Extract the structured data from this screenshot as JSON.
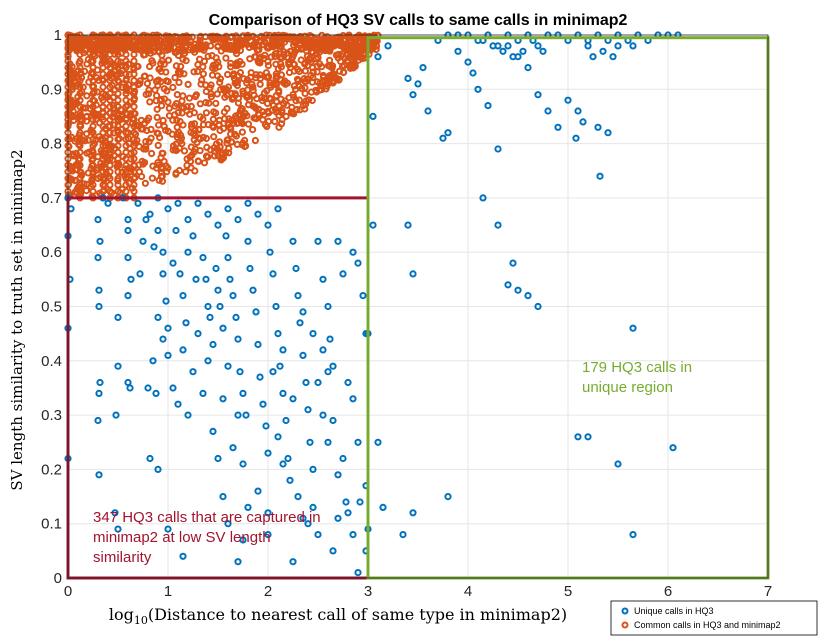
{
  "chart_data": {
    "type": "scatter",
    "title": "Comparison of HQ3 SV calls to same calls in minimap2",
    "xlabel": "log10(Distance to nearest call of same type in minimap2)",
    "xlabel_base": "log",
    "xlabel_sub": "10",
    "xlabel_rest": "(Distance to nearest call of same type in minimap2)",
    "ylabel": "SV length similarity to truth set in minimap2",
    "xlim": [
      0,
      7
    ],
    "ylim": [
      0,
      1
    ],
    "xticks": [
      "0",
      "1",
      "2",
      "3",
      "4",
      "5",
      "6",
      "7"
    ],
    "yticks": [
      "0",
      "0.1",
      "0.2",
      "0.3",
      "0.4",
      "0.5",
      "0.6",
      "0.7",
      "0.8",
      "0.9",
      "1"
    ],
    "grid": true,
    "legend_position": "bottom-right",
    "series": [
      {
        "name": "Unique calls in HQ3",
        "color": "#0072BD",
        "points": [
          [
            0.0,
            0.46
          ],
          [
            0.0,
            0.22
          ],
          [
            0.02,
            0.55
          ],
          [
            0.0,
            0.63
          ],
          [
            0.03,
            0.68
          ],
          [
            0.0,
            0.7
          ],
          [
            0.3,
            0.66
          ],
          [
            0.32,
            0.62
          ],
          [
            0.3,
            0.59
          ],
          [
            0.31,
            0.5
          ],
          [
            0.32,
            0.36
          ],
          [
            0.31,
            0.34
          ],
          [
            0.3,
            0.29
          ],
          [
            0.31,
            0.19
          ],
          [
            0.31,
            0.53
          ],
          [
            0.5,
            0.48
          ],
          [
            0.5,
            0.39
          ],
          [
            0.48,
            0.3
          ],
          [
            0.47,
            0.12
          ],
          [
            0.5,
            0.09
          ],
          [
            0.6,
            0.36
          ],
          [
            0.62,
            0.35
          ],
          [
            0.6,
            0.66
          ],
          [
            0.6,
            0.59
          ],
          [
            0.63,
            0.55
          ],
          [
            0.6,
            0.52
          ],
          [
            0.8,
            0.35
          ],
          [
            0.82,
            0.22
          ],
          [
            0.88,
            0.34
          ],
          [
            0.9,
            0.2
          ],
          [
            0.95,
            0.6
          ],
          [
            1.0,
            0.41
          ],
          [
            1.0,
            0.09
          ],
          [
            1.05,
            0.35
          ],
          [
            1.1,
            0.32
          ],
          [
            1.15,
            0.04
          ],
          [
            0.72,
            0.56
          ],
          [
            0.75,
            0.62
          ],
          [
            0.78,
            0.66
          ],
          [
            0.82,
            0.67
          ],
          [
            0.86,
            0.61
          ],
          [
            0.9,
            0.64
          ],
          [
            0.95,
            0.56
          ],
          [
            0.98,
            0.51
          ],
          [
            1.05,
            0.58
          ],
          [
            1.08,
            0.64
          ],
          [
            1.12,
            0.56
          ],
          [
            1.15,
            0.52
          ],
          [
            1.18,
            0.47
          ],
          [
            1.2,
            0.6
          ],
          [
            1.25,
            0.63
          ],
          [
            1.28,
            0.55
          ],
          [
            1.3,
            0.45
          ],
          [
            1.35,
            0.59
          ],
          [
            1.38,
            0.55
          ],
          [
            1.4,
            0.5
          ],
          [
            1.42,
            0.48
          ],
          [
            1.45,
            0.43
          ],
          [
            1.48,
            0.57
          ],
          [
            1.5,
            0.53
          ],
          [
            1.52,
            0.5
          ],
          [
            1.55,
            0.46
          ],
          [
            1.58,
            0.63
          ],
          [
            1.6,
            0.59
          ],
          [
            1.62,
            0.55
          ],
          [
            1.65,
            0.52
          ],
          [
            1.68,
            0.48
          ],
          [
            1.7,
            0.44
          ],
          [
            1.72,
            0.38
          ],
          [
            1.75,
            0.34
          ],
          [
            1.78,
            0.3
          ],
          [
            1.8,
            0.62
          ],
          [
            1.82,
            0.57
          ],
          [
            1.85,
            0.53
          ],
          [
            1.88,
            0.49
          ],
          [
            1.9,
            0.43
          ],
          [
            1.92,
            0.37
          ],
          [
            1.95,
            0.32
          ],
          [
            1.98,
            0.28
          ],
          [
            2.0,
            0.23
          ],
          [
            2.02,
            0.6
          ],
          [
            2.05,
            0.56
          ],
          [
            2.08,
            0.5
          ],
          [
            2.1,
            0.45
          ],
          [
            2.12,
            0.39
          ],
          [
            2.15,
            0.34
          ],
          [
            2.18,
            0.29
          ],
          [
            2.2,
            0.22
          ],
          [
            2.22,
            0.18
          ],
          [
            2.25,
            0.62
          ],
          [
            2.28,
            0.57
          ],
          [
            2.3,
            0.52
          ],
          [
            2.32,
            0.47
          ],
          [
            2.35,
            0.41
          ],
          [
            2.38,
            0.36
          ],
          [
            2.4,
            0.31
          ],
          [
            2.42,
            0.25
          ],
          [
            2.45,
            0.2
          ],
          [
            1.3,
            0.69
          ],
          [
            1.4,
            0.67
          ],
          [
            1.5,
            0.65
          ],
          [
            1.6,
            0.68
          ],
          [
            1.7,
            0.66
          ],
          [
            1.8,
            0.69
          ],
          [
            1.9,
            0.67
          ],
          [
            2.0,
            0.65
          ],
          [
            2.1,
            0.68
          ],
          [
            1.45,
            0.27
          ],
          [
            1.5,
            0.22
          ],
          [
            1.55,
            0.33
          ],
          [
            1.6,
            0.39
          ],
          [
            1.65,
            0.24
          ],
          [
            1.7,
            0.3
          ],
          [
            1.75,
            0.21
          ],
          [
            1.55,
            0.15
          ],
          [
            1.8,
            0.13
          ],
          [
            1.9,
            0.16
          ],
          [
            2.0,
            0.12
          ],
          [
            2.1,
            0.26
          ],
          [
            2.15,
            0.21
          ],
          [
            2.3,
            0.15
          ],
          [
            2.45,
            0.13
          ],
          [
            2.5,
            0.36
          ],
          [
            2.55,
            0.3
          ],
          [
            2.6,
            0.25
          ],
          [
            2.5,
            0.62
          ],
          [
            2.55,
            0.55
          ],
          [
            2.6,
            0.5
          ],
          [
            2.62,
            0.44
          ],
          [
            2.65,
            0.39
          ],
          [
            2.7,
            0.19
          ],
          [
            2.75,
            0.22
          ],
          [
            2.78,
            0.14
          ],
          [
            2.8,
            0.36
          ],
          [
            2.85,
            0.33
          ],
          [
            2.9,
            0.25
          ],
          [
            2.92,
            0.14
          ],
          [
            2.95,
            0.52
          ],
          [
            2.98,
            0.45
          ],
          [
            2.9,
            0.58
          ],
          [
            2.85,
            0.6
          ],
          [
            2.75,
            0.56
          ],
          [
            2.7,
            0.62
          ],
          [
            2.6,
            0.38
          ],
          [
            2.65,
            0.29
          ],
          [
            2.7,
            0.11
          ],
          [
            2.55,
            0.42
          ],
          [
            2.45,
            0.45
          ],
          [
            2.35,
            0.49
          ],
          [
            2.25,
            0.33
          ],
          [
            2.15,
            0.42
          ],
          [
            2.05,
            0.38
          ],
          [
            2.9,
            0.01
          ],
          [
            2.98,
            0.05
          ],
          [
            3.0,
            0.45
          ],
          [
            2.98,
            0.17
          ],
          [
            2.85,
            0.08
          ],
          [
            3.0,
            0.09
          ],
          [
            2.65,
            0.05
          ],
          [
            2.5,
            0.08
          ],
          [
            2.4,
            0.1
          ],
          [
            1.25,
            0.38
          ],
          [
            1.35,
            0.34
          ],
          [
            1.2,
            0.3
          ],
          [
            1.15,
            0.42
          ],
          [
            1.0,
            0.46
          ],
          [
            0.95,
            0.44
          ],
          [
            0.9,
            0.48
          ],
          [
            0.85,
            0.4
          ],
          [
            1.4,
            0.4
          ],
          [
            1.0,
            0.68
          ],
          [
            1.1,
            0.69
          ],
          [
            1.2,
            0.66
          ],
          [
            0.9,
            0.7
          ],
          [
            0.7,
            0.69
          ],
          [
            0.6,
            0.64
          ],
          [
            0.55,
            0.7
          ],
          [
            0.4,
            0.69
          ],
          [
            0.35,
            0.7
          ],
          [
            1.7,
            0.03
          ],
          [
            1.75,
            0.07
          ],
          [
            2.25,
            0.03
          ],
          [
            2.35,
            0.11
          ],
          [
            2.8,
            0.12
          ],
          [
            1.6,
            0.1
          ],
          [
            2.0,
            0.08
          ],
          [
            3.05,
            0.85
          ],
          [
            3.1,
            0.96
          ],
          [
            3.2,
            0.98
          ],
          [
            3.4,
            0.92
          ],
          [
            3.5,
            0.91
          ],
          [
            3.45,
            0.89
          ],
          [
            3.55,
            0.94
          ],
          [
            3.6,
            0.86
          ],
          [
            3.7,
            0.99
          ],
          [
            3.75,
            0.81
          ],
          [
            3.8,
            0.82
          ],
          [
            3.9,
            0.97
          ],
          [
            4.0,
            0.95
          ],
          [
            4.05,
            0.93
          ],
          [
            4.1,
            0.9
          ],
          [
            4.2,
            0.87
          ],
          [
            4.3,
            0.79
          ],
          [
            4.4,
            0.98
          ],
          [
            4.5,
            0.96
          ],
          [
            4.6,
            0.94
          ],
          [
            4.7,
            0.89
          ],
          [
            4.8,
            0.86
          ],
          [
            4.9,
            0.83
          ],
          [
            5.0,
            0.88
          ],
          [
            5.1,
            0.86
          ],
          [
            5.15,
            0.84
          ],
          [
            5.2,
            0.99
          ],
          [
            5.3,
            0.83
          ],
          [
            5.4,
            0.82
          ],
          [
            5.5,
            0.98
          ],
          [
            5.6,
            0.99
          ],
          [
            5.7,
            1.0
          ],
          [
            5.8,
            0.99
          ],
          [
            5.9,
            1.0
          ],
          [
            6.0,
            1.0
          ],
          [
            6.1,
            1.0
          ],
          [
            5.32,
            0.74
          ],
          [
            5.08,
            0.81
          ],
          [
            3.8,
            1.0
          ],
          [
            3.9,
            1.0
          ],
          [
            4.0,
            1.0
          ],
          [
            4.1,
            0.99
          ],
          [
            4.2,
            1.0
          ],
          [
            4.3,
            0.98
          ],
          [
            4.4,
            1.0
          ],
          [
            4.5,
            0.99
          ],
          [
            4.6,
            1.0
          ],
          [
            4.7,
            0.98
          ],
          [
            4.8,
            1.0
          ],
          [
            4.9,
            1.0
          ],
          [
            5.0,
            0.99
          ],
          [
            5.1,
            1.0
          ],
          [
            5.2,
            0.98
          ],
          [
            5.3,
            1.0
          ],
          [
            5.4,
            0.99
          ],
          [
            5.5,
            1.0
          ],
          [
            4.25,
            0.98
          ],
          [
            4.35,
            0.97
          ],
          [
            4.15,
            0.99
          ],
          [
            4.45,
            0.96
          ],
          [
            4.55,
            0.97
          ],
          [
            4.65,
            0.99
          ],
          [
            4.75,
            0.97
          ],
          [
            5.25,
            0.96
          ],
          [
            5.35,
            0.97
          ],
          [
            5.45,
            0.96
          ],
          [
            5.65,
            0.98
          ],
          [
            3.05,
            0.65
          ],
          [
            3.1,
            0.25
          ],
          [
            3.15,
            0.13
          ],
          [
            3.4,
            0.65
          ],
          [
            3.45,
            0.56
          ],
          [
            3.35,
            0.08
          ],
          [
            3.45,
            0.12
          ],
          [
            3.8,
            0.15
          ],
          [
            4.15,
            0.7
          ],
          [
            4.3,
            0.65
          ],
          [
            4.45,
            0.58
          ],
          [
            4.4,
            0.54
          ],
          [
            4.6,
            0.52
          ],
          [
            4.7,
            0.5
          ],
          [
            4.5,
            0.53
          ],
          [
            5.1,
            0.26
          ],
          [
            5.2,
            0.26
          ],
          [
            5.65,
            0.46
          ],
          [
            5.5,
            0.21
          ],
          [
            5.65,
            0.08
          ],
          [
            6.05,
            0.24
          ]
        ]
      },
      {
        "name": "Common calls in HQ3 and minimap2",
        "color": "#D95319",
        "region": {
          "x": [
            0,
            3.1
          ],
          "ymin": 0.7,
          "ymax": 1.0
        }
      }
    ],
    "annotations": [
      {
        "text": "179 HQ3 calls in",
        "text2": "unique region",
        "color": "#77AC30"
      },
      {
        "text": "347 HQ3 calls that are captured in",
        "text2": "minimap2 at low SV length",
        "text3": "similarity",
        "color": "#A2142F"
      }
    ]
  }
}
